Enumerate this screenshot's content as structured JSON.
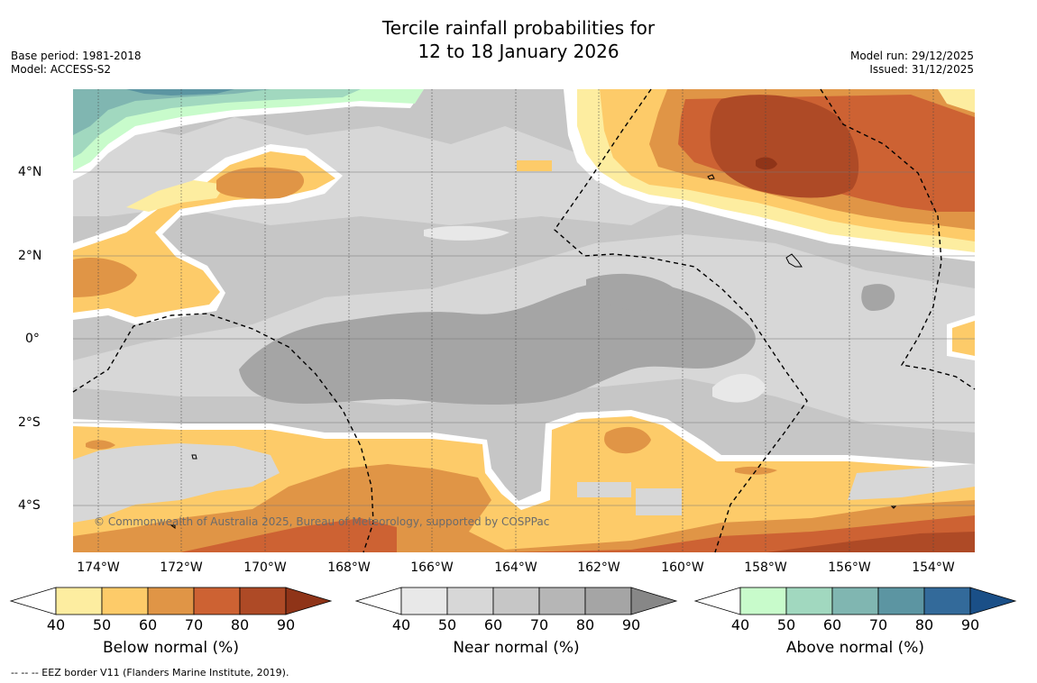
{
  "title": {
    "line1": "Tercile rainfall probabilities for",
    "line2": "12 to 18 January 2026"
  },
  "meta_left": {
    "base_period": "Base period: 1981-2018",
    "model": "Model: ACCESS-S2"
  },
  "meta_right": {
    "model_run": "Model run: 29/12/2025",
    "issued": "Issued: 31/12/2025"
  },
  "axes": {
    "lon_labels": [
      "174°W",
      "172°W",
      "170°W",
      "168°W",
      "166°W",
      "164°W",
      "162°W",
      "160°W",
      "158°W",
      "156°W",
      "154°W"
    ],
    "lat_labels": [
      "4°N",
      "2°N",
      "0°",
      "2°S",
      "4°S"
    ]
  },
  "copyright": "© Commonwealth of Australia 2025, Bureau of Meteorology, supported by COSPPac",
  "colorbars": [
    {
      "label": "Below normal (%)",
      "ticks": [
        "40",
        "50",
        "60",
        "70",
        "80",
        "90"
      ],
      "under_color": "#ffffff",
      "colors": [
        "#fdeda0",
        "#fdcb69",
        "#e09546",
        "#cd6233",
        "#ae4a26"
      ],
      "over_color": "#8f3418"
    },
    {
      "label": "Near normal (%)",
      "ticks": [
        "40",
        "50",
        "60",
        "70",
        "80",
        "90"
      ],
      "under_color": "#ffffff",
      "colors": [
        "#e8e8e8",
        "#d7d7d7",
        "#c6c6c6",
        "#b6b6b6",
        "#a5a5a5"
      ],
      "over_color": "#878787"
    },
    {
      "label": "Above normal (%)",
      "ticks": [
        "40",
        "50",
        "60",
        "70",
        "80",
        "90"
      ],
      "under_color": "#ffffff",
      "colors": [
        "#c8fbcb",
        "#a1d8bf",
        "#80b6b1",
        "#5c95a2",
        "#336a9a"
      ],
      "over_color": "#1a4f87"
    }
  ],
  "footnote": "--  --  -- EEZ border V11 (Flanders Marine Institute, 2019)."
}
